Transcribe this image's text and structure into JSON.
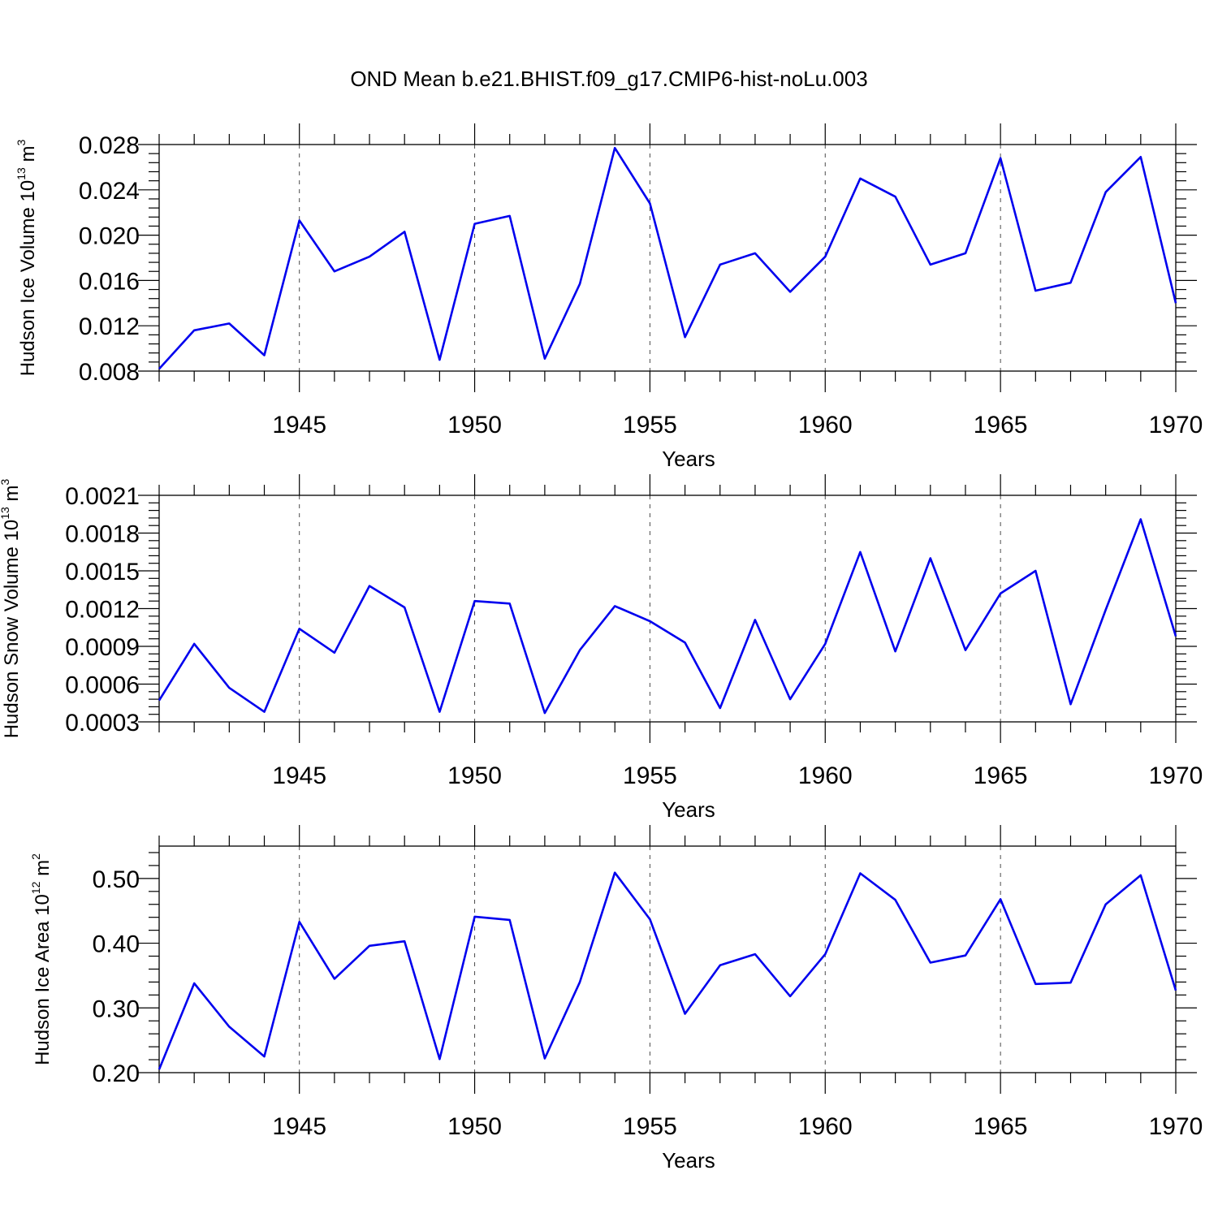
{
  "figure": {
    "title": "OND Mean b.e21.BHIST.f09_g17.CMIP6-hist-noLu.003",
    "line_color": "#0000ee"
  },
  "chart_data": [
    {
      "type": "line",
      "title": "OND Mean b.e21.BHIST.f09_g17.CMIP6-hist-noLu.003",
      "xlabel": "Years",
      "ylabel": {
        "main": "Hudson Ice Volume 10",
        "exp": "13",
        "unit": " m",
        "unit_exp": "3"
      },
      "xlim": [
        1941,
        1970
      ],
      "ylim": [
        0.008,
        0.028
      ],
      "yticks": [
        0.008,
        0.012,
        0.016,
        0.02,
        0.024,
        0.028
      ],
      "ytick_labels": [
        "0.008",
        "0.012",
        "0.016",
        "0.020",
        "0.024",
        "0.028"
      ],
      "xticks": [
        1945,
        1950,
        1955,
        1960,
        1965,
        1970
      ],
      "xtick_labels": [
        "1945",
        "1950",
        "1955",
        "1960",
        "1965",
        "1970"
      ],
      "grid": "vertical-dashed",
      "x": [
        1941,
        1942,
        1943,
        1944,
        1945,
        1946,
        1947,
        1948,
        1949,
        1950,
        1951,
        1952,
        1953,
        1954,
        1955,
        1956,
        1957,
        1958,
        1959,
        1960,
        1961,
        1962,
        1963,
        1964,
        1965,
        1966,
        1967,
        1968,
        1969,
        1970
      ],
      "series": [
        {
          "values": [
            0.0082,
            0.0116,
            0.0122,
            0.0094,
            0.0213,
            0.0168,
            0.0181,
            0.0203,
            0.009,
            0.021,
            0.0217,
            0.0091,
            0.0157,
            0.0277,
            0.0228,
            0.011,
            0.0174,
            0.0184,
            0.015,
            0.0181,
            0.025,
            0.0234,
            0.0174,
            0.0184,
            0.0268,
            0.0151,
            0.0158,
            0.0238,
            0.0269,
            0.014
          ]
        }
      ]
    },
    {
      "type": "line",
      "xlabel": "Years",
      "ylabel": {
        "main": "Hudson Snow Volume 10",
        "exp": "13",
        "unit": " m",
        "unit_exp": "3"
      },
      "xlim": [
        1941,
        1970
      ],
      "ylim": [
        0.0003,
        0.0021
      ],
      "yticks": [
        0.0003,
        0.0006,
        0.0009,
        0.0012,
        0.0015,
        0.0018,
        0.0021
      ],
      "ytick_labels": [
        "0.0003",
        "0.0006",
        "0.0009",
        "0.0012",
        "0.0015",
        "0.0018",
        "0.0021"
      ],
      "xticks": [
        1945,
        1950,
        1955,
        1960,
        1965,
        1970
      ],
      "xtick_labels": [
        "1945",
        "1950",
        "1955",
        "1960",
        "1965",
        "1970"
      ],
      "grid": "vertical-dashed",
      "x": [
        1941,
        1942,
        1943,
        1944,
        1945,
        1946,
        1947,
        1948,
        1949,
        1950,
        1951,
        1952,
        1953,
        1954,
        1955,
        1956,
        1957,
        1958,
        1959,
        1960,
        1961,
        1962,
        1963,
        1964,
        1965,
        1966,
        1967,
        1968,
        1969,
        1970
      ],
      "series": [
        {
          "values": [
            0.00047,
            0.00092,
            0.00057,
            0.00038,
            0.00104,
            0.00085,
            0.00138,
            0.00121,
            0.00038,
            0.00126,
            0.00124,
            0.00037,
            0.00087,
            0.00122,
            0.0011,
            0.00093,
            0.00041,
            0.00111,
            0.00048,
            0.00092,
            0.00165,
            0.00086,
            0.0016,
            0.00087,
            0.00132,
            0.0015,
            0.00044,
            0.00119,
            0.00191,
            0.00098
          ]
        }
      ]
    },
    {
      "type": "line",
      "xlabel": "Years",
      "ylabel": {
        "main": "Hudson Ice Area 10",
        "exp": "12",
        "unit": " m",
        "unit_exp": "2"
      },
      "xlim": [
        1941,
        1970
      ],
      "ylim": [
        0.2,
        0.55
      ],
      "yticks": [
        0.2,
        0.3,
        0.4,
        0.5
      ],
      "ytick_labels": [
        "0.20",
        "0.30",
        "0.40",
        "0.50"
      ],
      "xticks": [
        1945,
        1950,
        1955,
        1960,
        1965,
        1970
      ],
      "xtick_labels": [
        "1945",
        "1950",
        "1955",
        "1960",
        "1965",
        "1970"
      ],
      "grid": "vertical-dashed",
      "x": [
        1941,
        1942,
        1943,
        1944,
        1945,
        1946,
        1947,
        1948,
        1949,
        1950,
        1951,
        1952,
        1953,
        1954,
        1955,
        1956,
        1957,
        1958,
        1959,
        1960,
        1961,
        1962,
        1963,
        1964,
        1965,
        1966,
        1967,
        1968,
        1969,
        1970
      ],
      "series": [
        {
          "values": [
            0.205,
            0.338,
            0.271,
            0.225,
            0.433,
            0.345,
            0.396,
            0.403,
            0.221,
            0.441,
            0.436,
            0.222,
            0.34,
            0.509,
            0.437,
            0.291,
            0.366,
            0.383,
            0.318,
            0.383,
            0.508,
            0.467,
            0.37,
            0.381,
            0.468,
            0.337,
            0.339,
            0.46,
            0.505,
            0.327
          ]
        }
      ]
    }
  ]
}
